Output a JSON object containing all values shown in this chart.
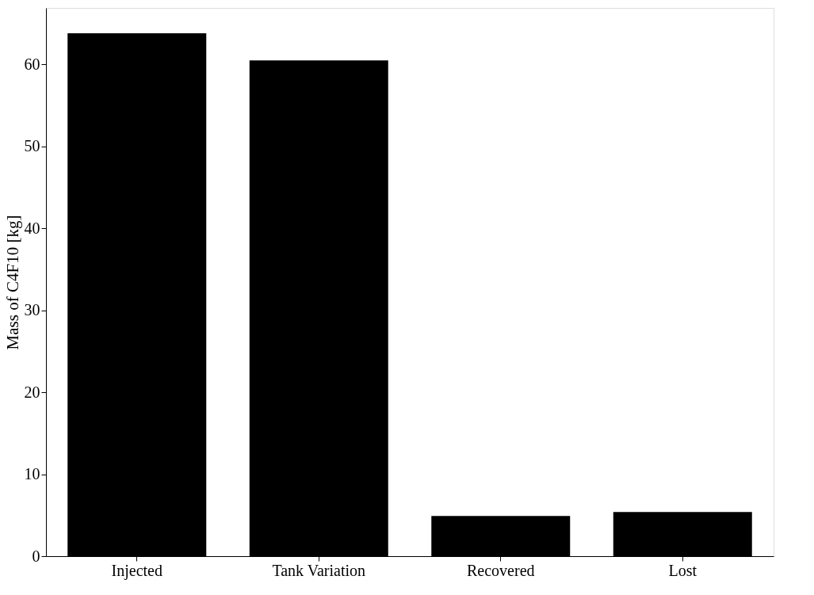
{
  "chart_data": {
    "type": "bar",
    "ylabel": "Mass of C4F10 [kg]",
    "categories": [
      "Injected",
      "Tank Variation",
      "Recovered",
      "Lost"
    ],
    "values": [
      63.8,
      60.5,
      4.9,
      5.4
    ],
    "color": "#000000",
    "ylim": [
      0,
      66.9
    ],
    "yticks": [
      0,
      10,
      20,
      30,
      40,
      50,
      60
    ],
    "grid": false
  }
}
